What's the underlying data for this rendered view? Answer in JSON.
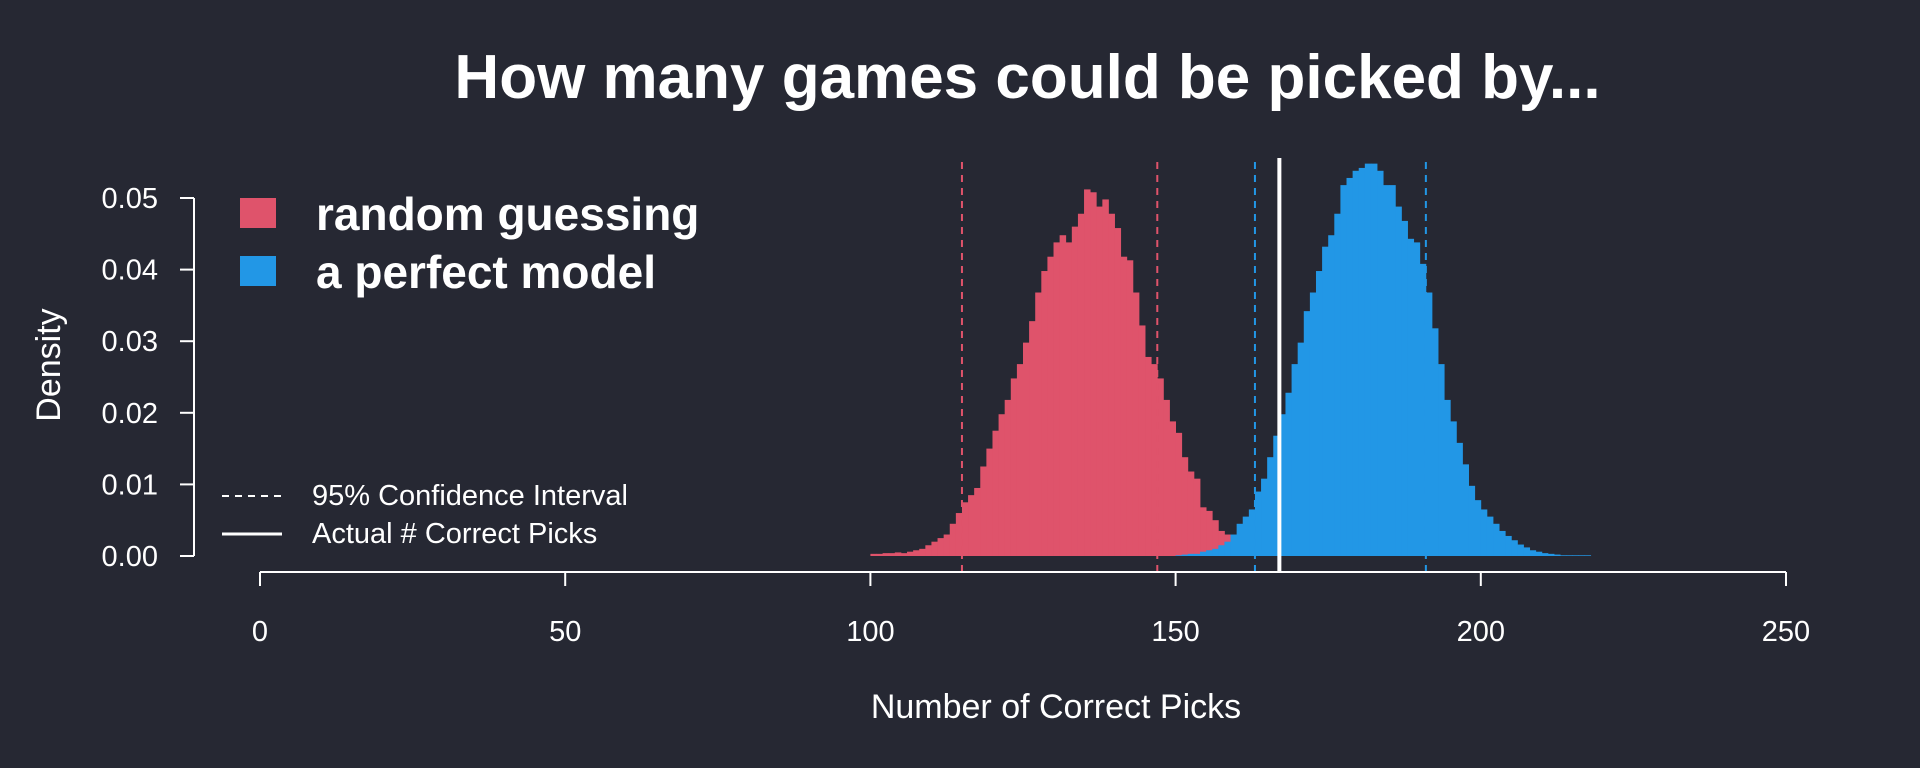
{
  "chart_data": {
    "type": "bar",
    "title": "How many games could be picked by...",
    "xlabel": "Number of Correct Picks",
    "ylabel": "Density",
    "xlim": [
      0,
      250
    ],
    "ylim": [
      0,
      0.05
    ],
    "x_ticks": [
      0,
      50,
      100,
      150,
      200,
      250
    ],
    "y_ticks": [
      "0.00",
      "0.01",
      "0.02",
      "0.03",
      "0.04",
      "0.05"
    ],
    "bin_width": 1,
    "legend_top": {
      "placement": "top-left",
      "entries": [
        "random guessing",
        "a perfect model"
      ]
    },
    "legend_bottom": {
      "placement": "bottom-left",
      "entries": [
        "95% Confidence Interval",
        "Actual # Correct Picks"
      ]
    },
    "colors": {
      "background": "#262833",
      "random": "#DF536B",
      "perfect": "#2297E6",
      "axis": "#ffffff"
    },
    "series": [
      {
        "name": "random guessing",
        "bin_start": 100,
        "values": [
          0.0003,
          0.0003,
          0.0004,
          0.0004,
          0.0005,
          0.0004,
          0.0006,
          0.0008,
          0.001,
          0.0015,
          0.002,
          0.0025,
          0.003,
          0.0045,
          0.006,
          0.0075,
          0.0085,
          0.0095,
          0.0125,
          0.015,
          0.0175,
          0.0198,
          0.0218,
          0.0248,
          0.0268,
          0.0298,
          0.0328,
          0.0368,
          0.0398,
          0.0418,
          0.0438,
          0.0448,
          0.0438,
          0.046,
          0.0478,
          0.0512,
          0.0508,
          0.0488,
          0.0498,
          0.0478,
          0.0458,
          0.0418,
          0.0413,
          0.0368,
          0.0322,
          0.0278,
          0.0268,
          0.0248,
          0.0218,
          0.0188,
          0.0172,
          0.0138,
          0.0118,
          0.0108,
          0.0068,
          0.0063,
          0.005,
          0.0035,
          0.003,
          0.0025,
          0.0018,
          0.0015,
          0.0012,
          0.0008,
          0.0006,
          0.0004,
          0.0003
        ]
      },
      {
        "name": "a perfect model",
        "bin_start": 150,
        "values": [
          0.0001,
          0.0002,
          0.0003,
          0.0003,
          0.0006,
          0.0008,
          0.001,
          0.0015,
          0.002,
          0.003,
          0.0045,
          0.0055,
          0.0065,
          0.009,
          0.0108,
          0.0138,
          0.0168,
          0.0198,
          0.0228,
          0.0268,
          0.0298,
          0.0342,
          0.0368,
          0.0398,
          0.0432,
          0.0448,
          0.0478,
          0.0518,
          0.0528,
          0.0538,
          0.0542,
          0.0548,
          0.0548,
          0.0538,
          0.0518,
          0.0518,
          0.0488,
          0.0468,
          0.0443,
          0.0438,
          0.0408,
          0.0368,
          0.0318,
          0.0268,
          0.0218,
          0.0188,
          0.0158,
          0.0128,
          0.0098,
          0.0078,
          0.0065,
          0.0055,
          0.0045,
          0.0035,
          0.0028,
          0.0022,
          0.0016,
          0.0012,
          0.0008,
          0.0006,
          0.0004,
          0.0003,
          0.0002,
          0.0001,
          0.0001,
          0.0001,
          0.0001,
          0.0001
        ]
      }
    ],
    "ci_lines": [
      {
        "series": "random guessing",
        "x": 115
      },
      {
        "series": "random guessing",
        "x": 147
      },
      {
        "series": "a perfect model",
        "x": 163
      },
      {
        "series": "a perfect model",
        "x": 191
      }
    ],
    "actual_line": {
      "x": 167
    }
  }
}
